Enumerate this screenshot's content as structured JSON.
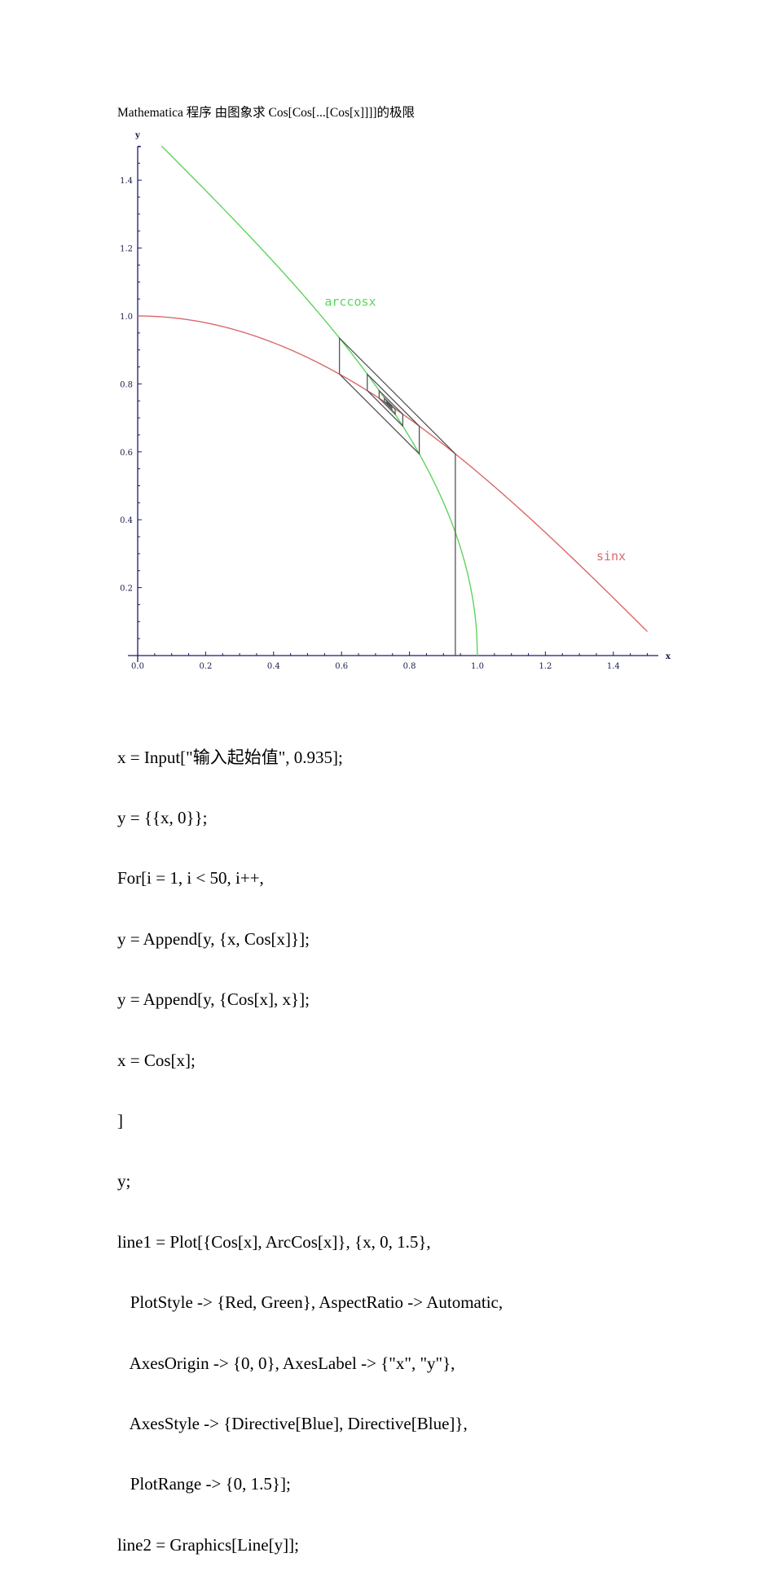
{
  "title": "Mathematica 程序 由图象求 Cos[Cos[...[Cos[x]]]]的极限",
  "chart_data": {
    "type": "line",
    "title": "",
    "xlabel": "x",
    "ylabel": "y",
    "xlim": [
      0,
      1.5
    ],
    "ylim": [
      0,
      1.5
    ],
    "x_ticks": [
      "0.0",
      "0.2",
      "0.4",
      "0.6",
      "0.8",
      "1.0",
      "1.2",
      "1.4"
    ],
    "y_ticks": [
      "0.2",
      "0.4",
      "0.6",
      "0.8",
      "1.0",
      "1.2",
      "1.4"
    ],
    "minor_tick_step": 0.05,
    "grid": false,
    "axis_color": "#1a1a6e",
    "series": [
      {
        "name": "sinx",
        "function": "cos(x)",
        "color": "#d9696b",
        "x_range": [
          0,
          1.5
        ],
        "label_pos": [
          1.35,
          0.28
        ]
      },
      {
        "name": "arccosx",
        "function": "arccos(x)",
        "color": "#5fd35f",
        "x_range": [
          0.07,
          1.0
        ],
        "label_pos": [
          0.55,
          1.03
        ]
      },
      {
        "name": "cobweb",
        "type": "polyline",
        "color": "#555555",
        "start_x": 0.935,
        "iterations": 49,
        "points_first": [
          [
            0.935,
            0
          ],
          [
            0.935,
            0.594
          ],
          [
            0.594,
            0.935
          ],
          [
            0.594,
            0.829
          ],
          [
            0.829,
            0.594
          ],
          [
            0.829,
            0.676
          ],
          [
            0.676,
            0.829
          ],
          [
            0.676,
            0.78
          ],
          [
            0.78,
            0.676
          ],
          [
            0.78,
            0.711
          ],
          [
            0.711,
            0.78
          ]
        ],
        "limit": 0.739
      }
    ]
  },
  "code": {
    "lines": [
      "x = Input[\"输入起始值\", 0.935];",
      "y = {{x, 0}};",
      "For[i = 1, i < 50, i++,",
      "y = Append[y, {x, Cos[x]}];",
      "y = Append[y, {Cos[x], x}];",
      "x = Cos[x];",
      "]",
      "y;",
      "line1 = Plot[{Cos[x], ArcCos[x]}, {x, 0, 1.5},",
      "   PlotStyle -> {Red, Green}, AspectRatio -> Automatic,",
      "   AxesOrigin -> {0, 0}, AxesLabel -> {\"x\", \"y\"},",
      "   AxesStyle -> {Directive[Blue], Directive[Blue]},",
      "   PlotRange -> {0, 1.5}];",
      "line2 = Graphics[Line[y]];"
    ]
  }
}
